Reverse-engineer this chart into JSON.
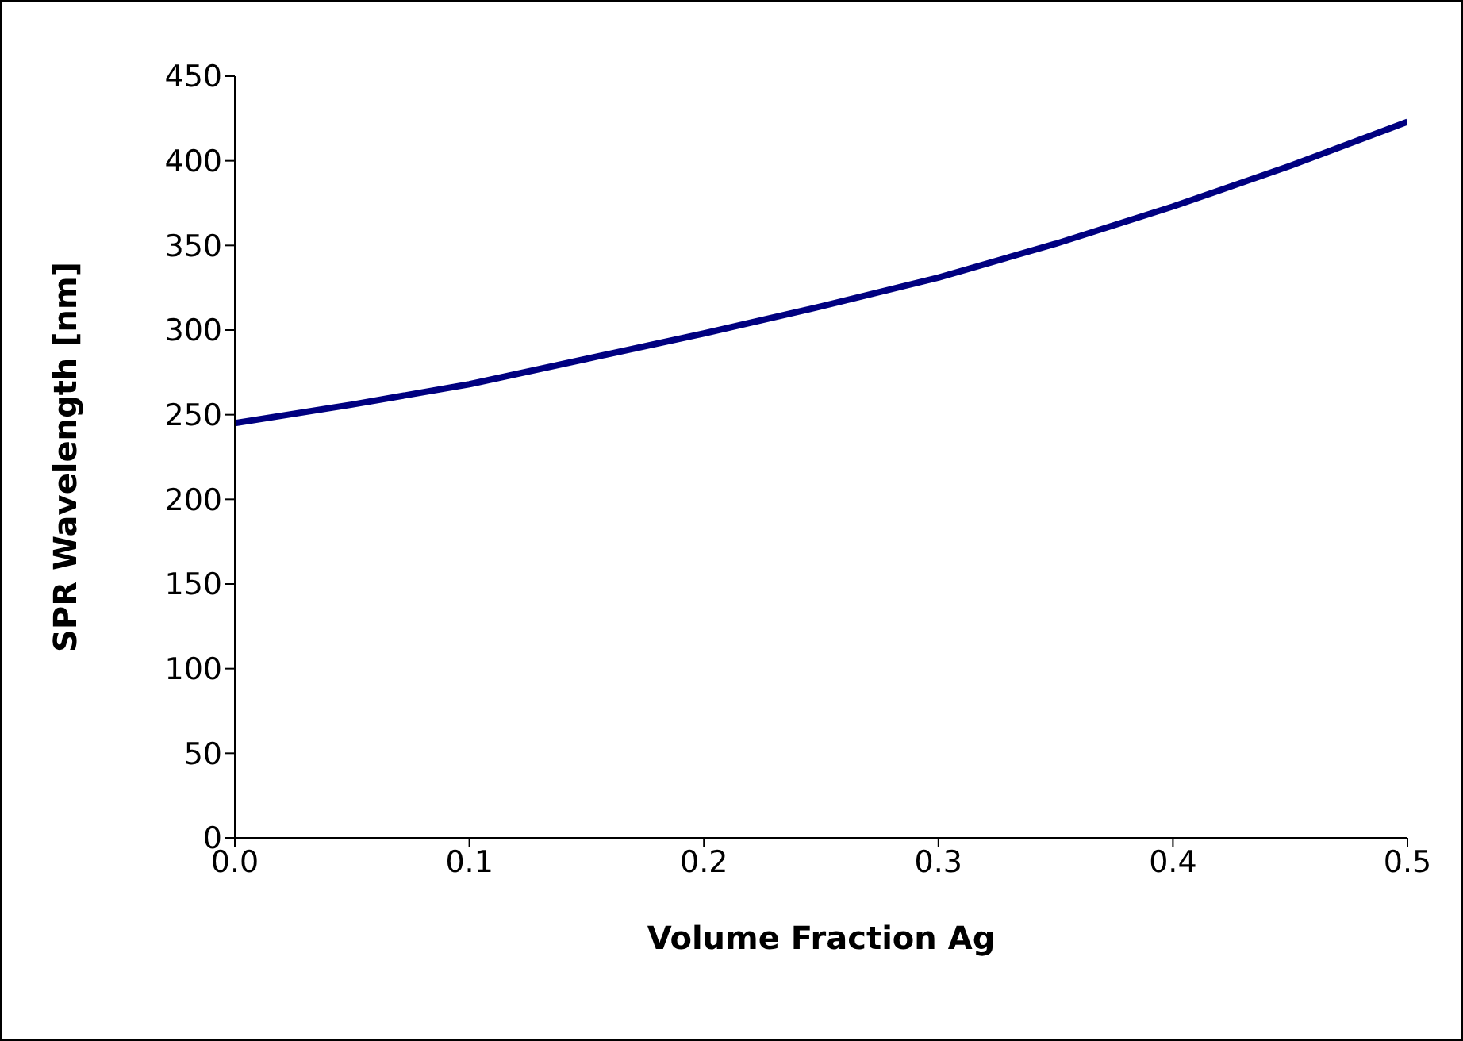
{
  "chart_data": {
    "type": "line",
    "xlabel": "Volume Fraction Ag",
    "ylabel": "SPR Wavelength [nm]",
    "x": [
      0,
      0.05,
      0.1,
      0.15,
      0.2,
      0.25,
      0.3,
      0.35,
      0.4,
      0.45,
      0.5
    ],
    "series": [
      {
        "color": "#000080",
        "values": [
          245,
          256,
          268,
          283,
          298,
          314,
          331,
          351,
          373,
          397,
          423
        ]
      }
    ],
    "xlim": [
      0,
      0.5
    ],
    "xticks": [
      {
        "value": 0,
        "label": "0.0"
      },
      0.1,
      0.2,
      0.3,
      0.4,
      0.5
    ],
    "ylim": [
      0,
      450
    ],
    "yticks": [
      0,
      50,
      100,
      150,
      200,
      250,
      300,
      350,
      400,
      450
    ],
    "grid": false,
    "legend": false,
    "marker": "none",
    "line_style": "solid"
  }
}
